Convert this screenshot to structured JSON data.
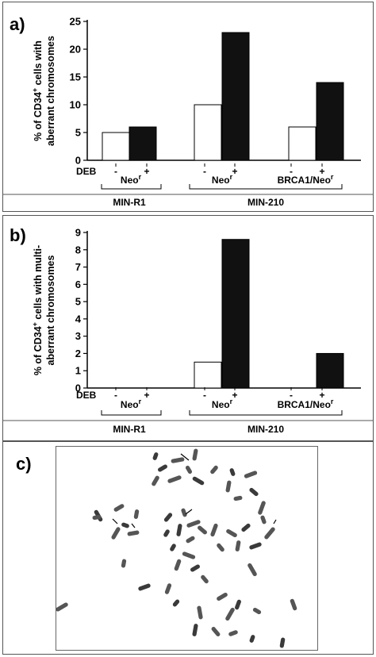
{
  "chart_data": [
    {
      "panel": "a)",
      "type": "bar",
      "ylabel_lines": [
        "% of CD34",
        "cells with",
        "aberrant chromosomes"
      ],
      "ylabel_sup": "+",
      "ylim": [
        0,
        25
      ],
      "yticks": [
        0,
        5,
        10,
        15,
        20,
        25
      ],
      "treatment_label": "DEB",
      "series": [
        {
          "name": "-",
          "fill": "#ffffff",
          "values": [
            5,
            10,
            6
          ]
        },
        {
          "name": "+",
          "fill": "#111111",
          "values": [
            6,
            23,
            14
          ]
        }
      ],
      "groups": [
        {
          "construct": "Neo",
          "construct_sup": "r"
        },
        {
          "construct": "Neo",
          "construct_sup": "r"
        },
        {
          "construct": "BRCA1/Neo",
          "construct_sup": "r"
        }
      ],
      "cell_lines": [
        "MIN-R1",
        "MIN-210"
      ]
    },
    {
      "panel": "b)",
      "type": "bar",
      "ylabel_lines": [
        "% of CD34",
        "cells with multi-",
        "aberrant chromosomes"
      ],
      "ylabel_sup": "+",
      "ylim": [
        0,
        9
      ],
      "yticks": [
        0,
        1,
        2,
        3,
        4,
        5,
        6,
        7,
        8,
        9
      ],
      "treatment_label": "DEB",
      "series": [
        {
          "name": "-",
          "fill": "#ffffff",
          "values": [
            0,
            1.5,
            0
          ]
        },
        {
          "name": "+",
          "fill": "#111111",
          "values": [
            0,
            8.6,
            2
          ]
        }
      ],
      "groups": [
        {
          "construct": "Neo",
          "construct_sup": "r"
        },
        {
          "construct": "Neo",
          "construct_sup": "r"
        },
        {
          "construct": "BRCA1/Neo",
          "construct_sup": "r"
        }
      ],
      "cell_lines": [
        "MIN-R1",
        "MIN-210"
      ]
    }
  ],
  "panel_c": {
    "letter": "c)",
    "image": "metaphase-chromosome-spread-micrograph"
  }
}
